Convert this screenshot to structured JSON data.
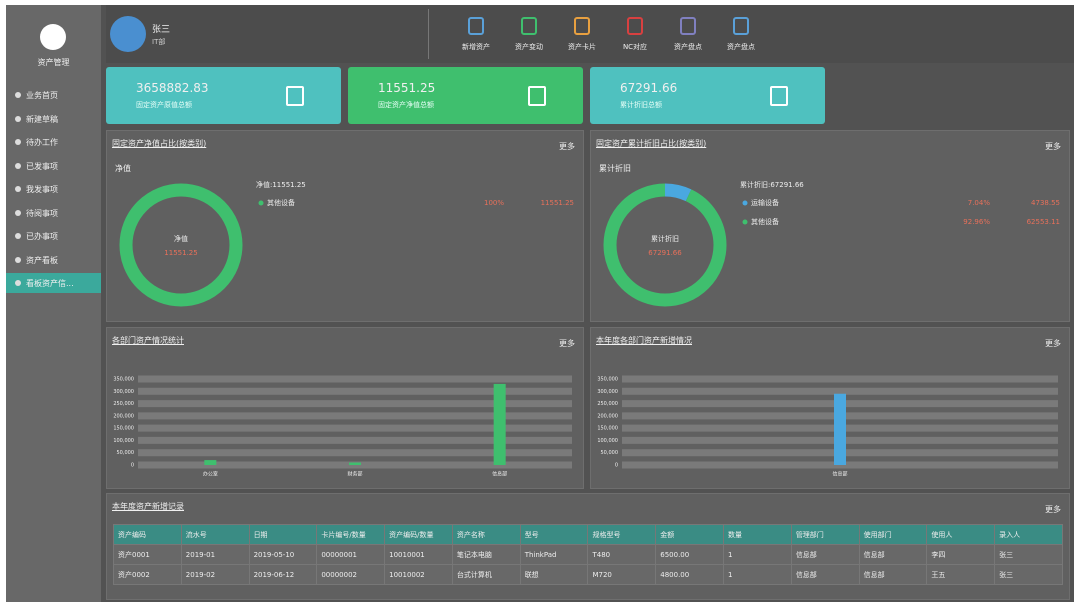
{
  "sidebar": {
    "title": "资产管理",
    "menu": [
      "业务首页",
      "新建草稿",
      "待办工作",
      "已发事项",
      "我发事项",
      "待阅事项",
      "已办事项",
      "资产看板",
      "看板资产信..."
    ],
    "active": 8
  },
  "user": {
    "name": "张三",
    "dept": "IT部"
  },
  "toolbar": [
    "新增资产",
    "资产变动",
    "资产卡片",
    "NC对应",
    "资产盘点",
    "资产盘点"
  ],
  "cards": [
    {
      "value": "3658882.83",
      "label": "固定资产原值总额",
      "color": "#4fc1bf"
    },
    {
      "value": "11551.25",
      "label": "固定资产净值总额",
      "color": "#3fbf6e"
    },
    {
      "value": "67291.66",
      "label": "累计折旧总额",
      "color": "#4fc1bf"
    }
  ],
  "chart_data": [
    {
      "type": "pie",
      "title": "固定资产净值占比(按类别)",
      "more": "更多",
      "dropdown": "净值",
      "summary": "净值:11551.25",
      "center_label": "净值",
      "center_value": "11551.25",
      "categories": [
        "其他设备"
      ],
      "values": [
        100
      ],
      "value_labels": [
        "100%"
      ],
      "amounts": [
        11551.25
      ],
      "colors": [
        "#3fbf6e"
      ]
    },
    {
      "type": "pie",
      "title": "固定资产累计折旧占比(按类别)",
      "more": "更多",
      "dropdown": "累计折旧",
      "summary": "累计折旧:67291.66",
      "center_label": "累计折旧",
      "center_value": "67291.66",
      "categories": [
        "运输设备",
        "其他设备"
      ],
      "values": [
        7.04,
        92.96
      ],
      "value_labels": [
        "7.04%",
        "92.96%"
      ],
      "amounts": [
        4738.55,
        62553.11
      ],
      "colors": [
        "#4aa8e0",
        "#3fbf6e"
      ]
    },
    {
      "type": "bar",
      "title": "各部门资产情况统计",
      "more": "更多",
      "categories": [
        "办公室",
        "财务部",
        "信息部"
      ],
      "values": [
        20000,
        10000,
        330000
      ],
      "color": "#3fbf6e",
      "ylim": [
        0,
        350000
      ],
      "yticks": [
        0,
        {
          "value": 50000,
          "label": "50,000"
        },
        {
          "value": 100000,
          "label": "100,000"
        },
        {
          "value": 150000,
          "label": "150,000"
        },
        {
          "value": 200000,
          "label": "200,000"
        },
        {
          "value": 250000,
          "label": "250,000"
        },
        {
          "value": 300000,
          "label": "300,000"
        },
        {
          "value": 350000,
          "label": "350,000"
        }
      ],
      "grid": true
    },
    {
      "type": "bar",
      "title": "本年度各部门资产新增情况",
      "more": "更多",
      "categories": [
        "信息部"
      ],
      "values": [
        290000
      ],
      "color": "#4aa8e0",
      "ylim": [
        0,
        350000
      ],
      "yticks": [
        0,
        {
          "value": 50000,
          "label": "50,000"
        },
        {
          "value": 100000,
          "label": "100,000"
        },
        {
          "value": 150000,
          "label": "150,000"
        },
        {
          "value": 200000,
          "label": "200,000"
        },
        {
          "value": 250000,
          "label": "250,000"
        },
        {
          "value": 300000,
          "label": "300,000"
        },
        {
          "value": 350000,
          "label": "350,000"
        }
      ],
      "grid": true
    }
  ],
  "table": {
    "title": "本年度资产新增记录",
    "more": "更多",
    "headers": [
      "资产编码",
      "流水号",
      "日期",
      "卡片编号/数量",
      "资产编码/数量",
      "资产名称",
      "型号",
      "规格型号",
      "金额",
      "数量",
      "管理部门",
      "使用部门",
      "使用人",
      "录入人"
    ],
    "rows": [
      [
        "资产0001",
        "2019-01",
        "2019-05-10",
        "00000001",
        "10010001",
        "笔记本电脑",
        "ThinkPad",
        "T480",
        "6500.00",
        "1",
        "信息部",
        "信息部",
        "李四",
        "张三"
      ],
      [
        "资产0002",
        "2019-02",
        "2019-06-12",
        "00000002",
        "10010002",
        "台式计算机",
        "联想",
        "M720",
        "4800.00",
        "1",
        "信息部",
        "信息部",
        "王五",
        "张三"
      ]
    ]
  }
}
